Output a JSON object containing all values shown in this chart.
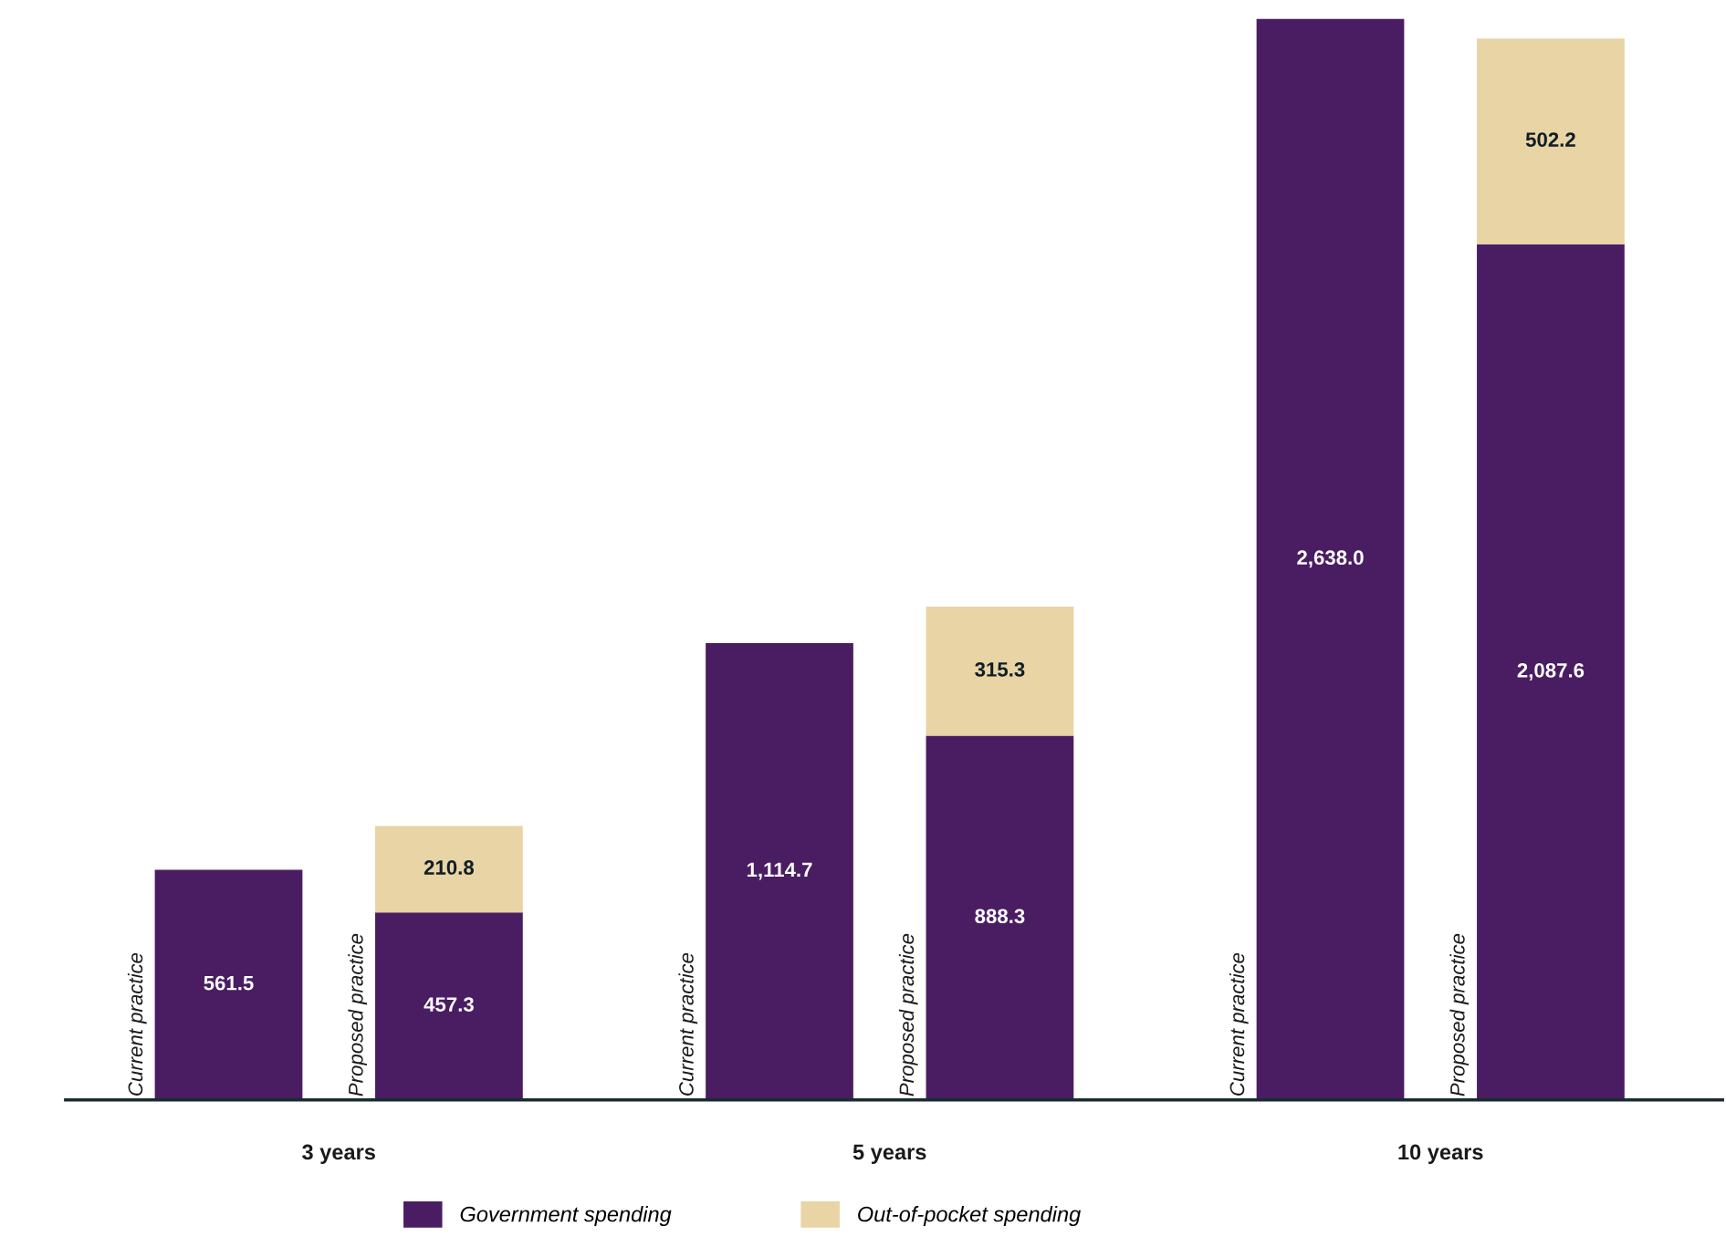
{
  "chart_data": {
    "type": "bar",
    "stacked": true,
    "legend": "bottom",
    "categories": [
      "Current practice",
      "Proposed practice",
      "Current practice",
      "Proposed practice",
      "Current practice",
      "Proposed practice"
    ],
    "series": [
      {
        "name": "Government spending",
        "color": "#4a1d62",
        "values": [
          561.5,
          457.3,
          1114.7,
          888.3,
          2638.0,
          2087.6
        ],
        "value_labels": [
          "561.5",
          "457.3",
          "1,114.7",
          "888.3",
          "2,638.0",
          "2,087.6"
        ]
      },
      {
        "name": "Out-of-pocket spending",
        "color": "#e8d4a4",
        "values": [
          null,
          210.8,
          null,
          315.3,
          null,
          502.2
        ],
        "value_labels": [
          null,
          "210.8",
          null,
          "315.3",
          null,
          "502.2"
        ]
      }
    ],
    "annotations": [
      "3 years",
      "5 years",
      "10 years"
    ]
  }
}
